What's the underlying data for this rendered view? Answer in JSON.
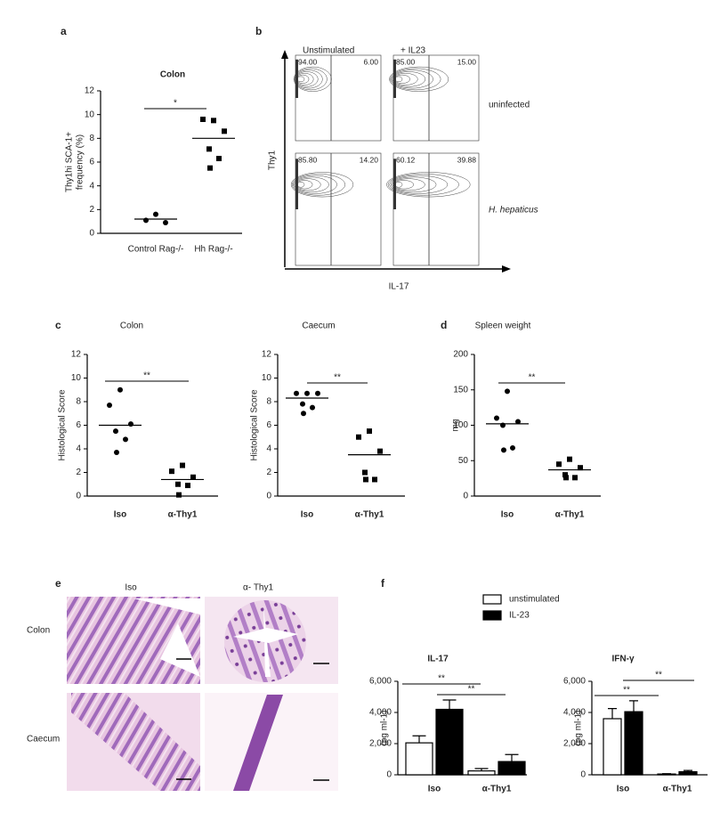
{
  "panel_labels": [
    "a",
    "b",
    "c",
    "d",
    "e",
    "f"
  ],
  "flow": {
    "columns": [
      "Unstimulated",
      "+ IL23"
    ],
    "rows": [
      "uninfected",
      "H. hepaticus"
    ],
    "ylabel": "Thy1",
    "xlabel": "IL-17",
    "quadrants": [
      [
        [
          "94.00",
          "6.00"
        ],
        [
          "85.00",
          "15.00"
        ]
      ],
      [
        [
          "85.80",
          "14.20"
        ],
        [
          "60.12",
          "39.88"
        ]
      ]
    ]
  },
  "histology": {
    "columns": [
      "Iso",
      "α- Thy1"
    ],
    "rows": [
      "Colon",
      "Caecum"
    ]
  },
  "chart_data": [
    {
      "type": "dot",
      "title": "Colon",
      "categories": [
        "Control Rag-/-",
        "Hh Rag-/-"
      ],
      "ylabel": [
        "Thy1hi SCA-1+",
        "frequency (%)"
      ],
      "ylim": [
        0,
        12
      ],
      "yticks": [
        0,
        2,
        4,
        6,
        8,
        10,
        12
      ],
      "points": [
        [
          1.6,
          1.1,
          0.9
        ],
        [
          9.5,
          9.6,
          8.6,
          7.1,
          6.3,
          5.5
        ]
      ],
      "means": [
        1.2,
        8.0
      ],
      "markers": [
        "circle",
        "square"
      ],
      "annotations": [
        "*"
      ]
    },
    {
      "type": "dot",
      "title": "Colon",
      "categories": [
        "Iso",
        "α-Thy1"
      ],
      "ylabel": [
        "Histological Score"
      ],
      "ylim": [
        0,
        12
      ],
      "yticks": [
        0,
        2,
        4,
        6,
        8,
        10,
        12
      ],
      "points": [
        [
          9.0,
          7.7,
          6.1,
          5.5,
          4.8,
          3.7
        ],
        [
          2.6,
          2.1,
          1.6,
          1.0,
          0.9,
          0.1
        ]
      ],
      "means": [
        6.0,
        1.4
      ],
      "markers": [
        "circle",
        "square"
      ],
      "annotations": [
        "**"
      ]
    },
    {
      "type": "dot",
      "title": "Caecum",
      "categories": [
        "Iso",
        "α-Thy1"
      ],
      "ylabel": [
        "Histological Score"
      ],
      "ylim": [
        0,
        12
      ],
      "yticks": [
        0,
        2,
        4,
        6,
        8,
        10,
        12
      ],
      "points": [
        [
          8.7,
          8.7,
          8.7,
          7.8,
          7.5,
          7.0
        ],
        [
          5.5,
          5.0,
          3.8,
          2.0,
          1.4,
          1.4
        ]
      ],
      "means": [
        8.3,
        3.5
      ],
      "markers": [
        "circle",
        "square"
      ],
      "annotations": [
        "**"
      ]
    },
    {
      "type": "dot",
      "title": "Spleen weight",
      "categories": [
        "Iso",
        "α-Thy1"
      ],
      "ylabel": [
        "mg"
      ],
      "ylim": [
        0,
        200
      ],
      "yticks": [
        0,
        50,
        100,
        150,
        200
      ],
      "points": [
        [
          148,
          110,
          105,
          100,
          68,
          65
        ],
        [
          52,
          45,
          40,
          30,
          26,
          26
        ]
      ],
      "means": [
        102,
        37
      ],
      "markers": [
        "circle",
        "square"
      ],
      "annotations": [
        "**"
      ]
    },
    {
      "type": "bar",
      "title": "IL-17",
      "categories": [
        "Iso",
        "α-Thy1"
      ],
      "ylabel": [
        "(pg ml-1)"
      ],
      "ylim": [
        0,
        6000
      ],
      "yticks": [
        0,
        {
          "value": 2000,
          "label": "2,000"
        },
        {
          "value": 4000,
          "label": "4,000"
        },
        {
          "value": 6000,
          "label": "6,000"
        }
      ],
      "legend": true,
      "series": [
        {
          "name": "unstimulated",
          "color": "#ffffff",
          "values": [
            2050,
            250
          ],
          "errors": [
            450,
            150
          ]
        },
        {
          "name": "IL-23",
          "color": "#000000",
          "values": [
            4200,
            850
          ],
          "errors": [
            600,
            450
          ]
        }
      ],
      "annotations": [
        "**",
        "**"
      ]
    },
    {
      "type": "bar",
      "title": "IFN-γ",
      "categories": [
        "Iso",
        "α-Thy1"
      ],
      "ylabel": [
        "(pg ml-1)"
      ],
      "ylim": [
        0,
        6000
      ],
      "yticks": [
        0,
        {
          "value": 2000,
          "label": "2,000"
        },
        {
          "value": 4000,
          "label": "4,000"
        },
        {
          "value": 6000,
          "label": "6,000"
        }
      ],
      "series": [
        {
          "color": "#ffffff",
          "values": [
            3600,
            50
          ],
          "errors": [
            650,
            20
          ]
        },
        {
          "color": "#000000",
          "values": [
            4050,
            200
          ],
          "errors": [
            700,
            80
          ]
        }
      ],
      "annotations": [
        "**",
        "**"
      ]
    }
  ]
}
